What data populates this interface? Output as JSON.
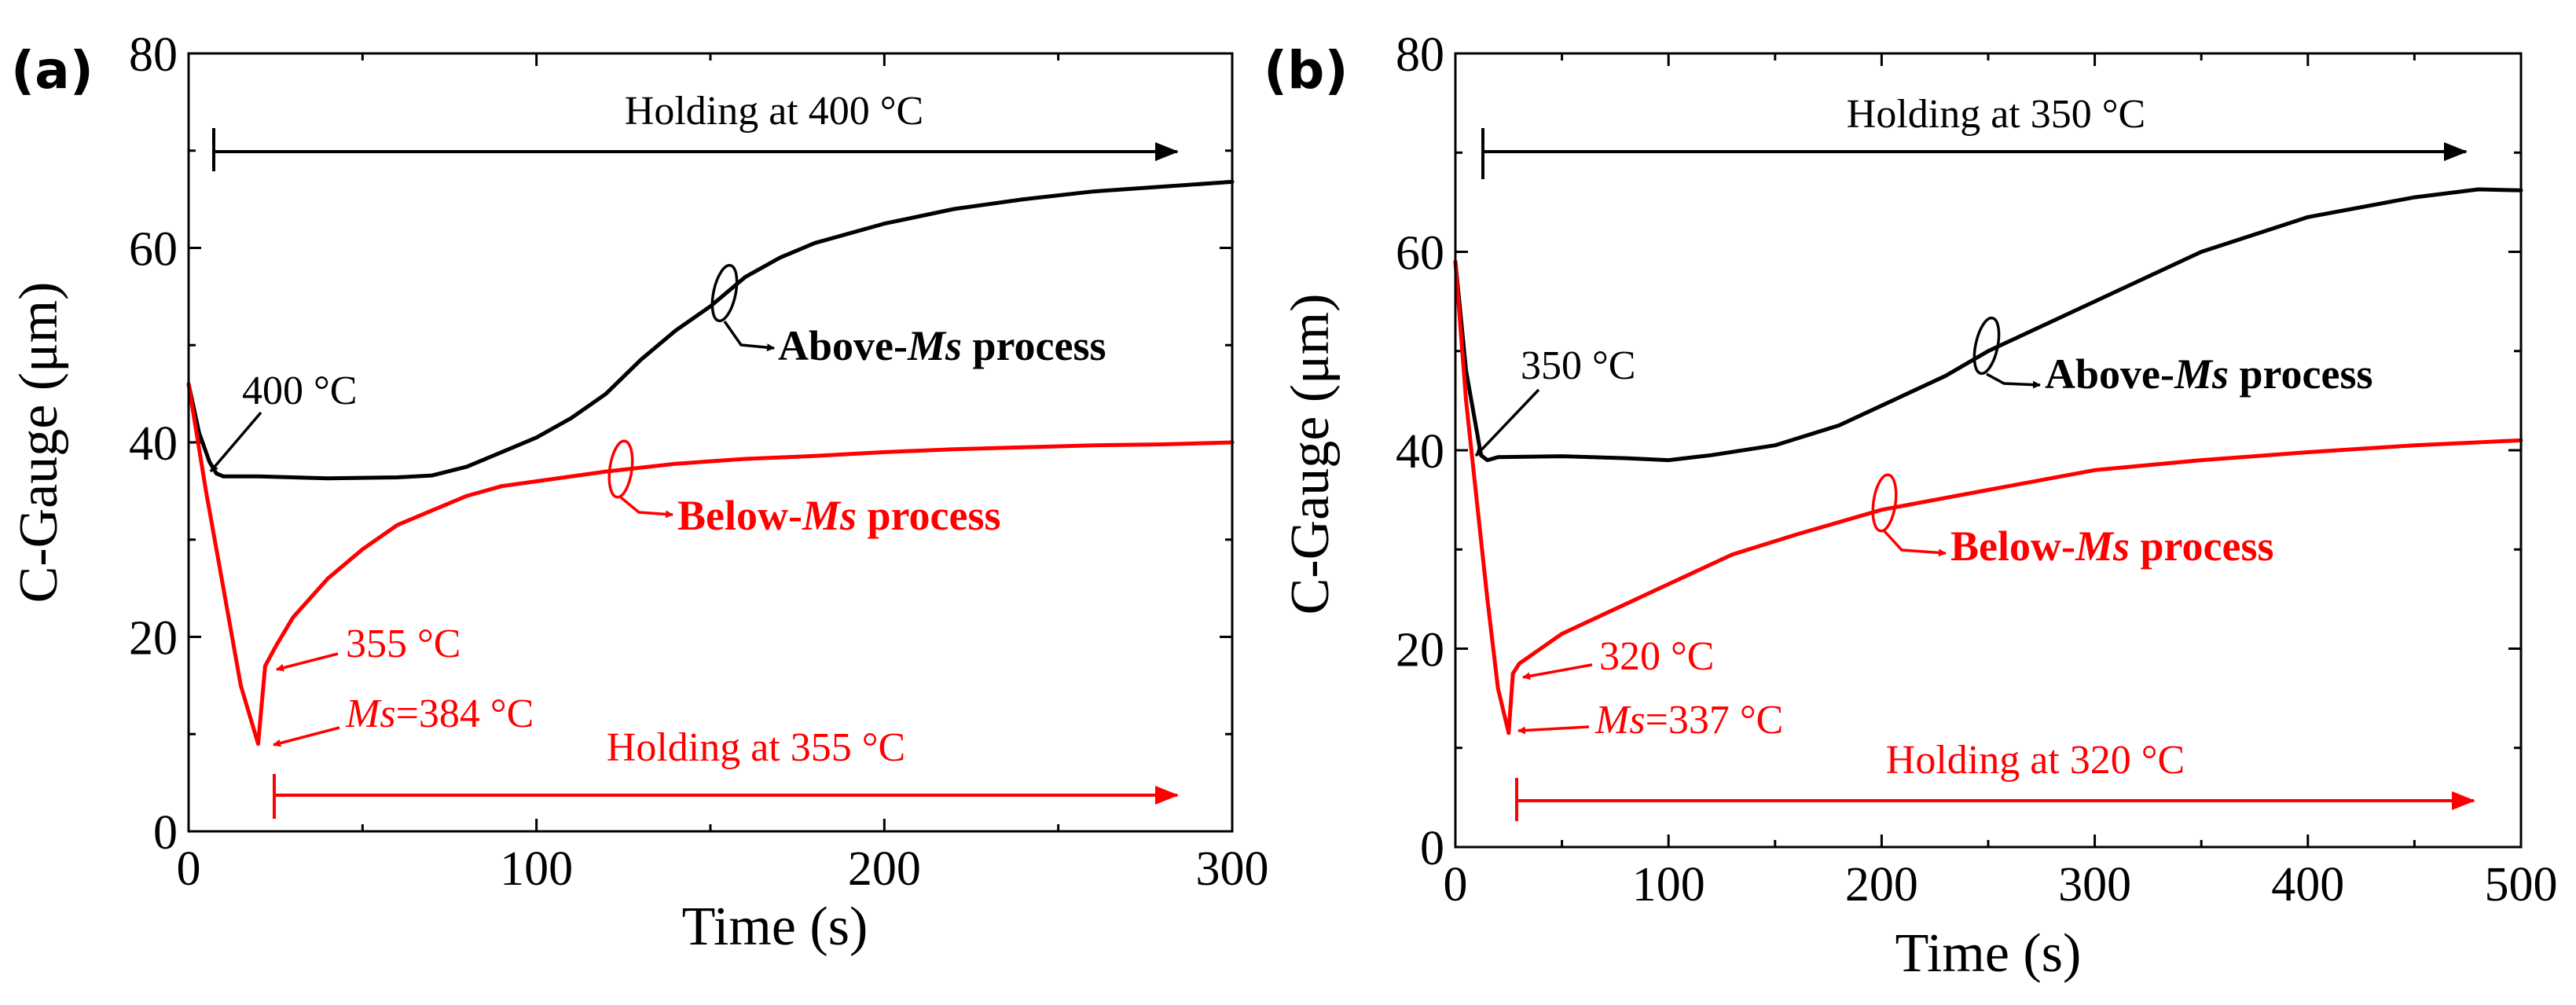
{
  "chart_data": [
    {
      "type": "line",
      "panel_label": "(a)",
      "xlabel": "Time (s)",
      "ylabel": "C-Gauge (μm)",
      "xlim": [
        0,
        300
      ],
      "ylim": [
        0,
        80
      ],
      "xticks": [
        "0",
        "100",
        "200",
        "300"
      ],
      "yticks": [
        "0",
        "20",
        "40",
        "60",
        "80"
      ],
      "series": [
        {
          "name": "Above-Ms process",
          "color": "#000000",
          "x": [
            0,
            3,
            6,
            8,
            10,
            20,
            40,
            60,
            70,
            80,
            90,
            100,
            110,
            120,
            130,
            140,
            150,
            160,
            170,
            180,
            200,
            220,
            240,
            260,
            280,
            300
          ],
          "y": [
            46,
            41,
            38,
            36.8,
            36.5,
            36.5,
            36.3,
            36.4,
            36.6,
            37.5,
            39,
            40.5,
            42.5,
            45,
            48.5,
            51.5,
            54,
            57,
            59,
            60.5,
            62.5,
            64,
            65,
            65.8,
            66.3,
            66.8
          ]
        },
        {
          "name": "Below-Ms process",
          "color": "#ff0000",
          "x": [
            0,
            5,
            10,
            15,
            20,
            22,
            25,
            30,
            40,
            50,
            60,
            70,
            80,
            90,
            100,
            120,
            140,
            160,
            180,
            200,
            220,
            240,
            260,
            280,
            300
          ],
          "y": [
            46,
            35,
            25,
            15,
            9,
            17,
            19,
            22,
            26,
            29,
            31.5,
            33,
            34.5,
            35.5,
            36,
            37,
            37.8,
            38.3,
            38.6,
            39,
            39.3,
            39.5,
            39.7,
            39.8,
            40
          ]
        }
      ],
      "annotations": {
        "hold_above": "Holding at 400 °C",
        "temp_above": "400 °C",
        "label_above_prefix": "Above-",
        "label_above_ms": "Ms",
        "label_above_suffix": " process",
        "label_below_prefix": "Below-",
        "label_below_ms": "Ms",
        "label_below_suffix": " process",
        "temp_below": "355 °C",
        "ms_label": "Ms",
        "ms_value": "=384 °C",
        "hold_below": "Holding at 355 °C"
      }
    },
    {
      "type": "line",
      "panel_label": "(b)",
      "xlabel": "Time (s)",
      "ylabel": "C-Gauge (μm)",
      "xlim": [
        0,
        500
      ],
      "ylim": [
        0,
        80
      ],
      "xticks": [
        "0",
        "100",
        "200",
        "300",
        "400",
        "500"
      ],
      "yticks": [
        "0",
        "20",
        "40",
        "60",
        "80"
      ],
      "series": [
        {
          "name": "Above-Ms process",
          "color": "#000000",
          "x": [
            0,
            5,
            10,
            12,
            15,
            20,
            50,
            80,
            100,
            120,
            150,
            180,
            200,
            230,
            250,
            280,
            300,
            350,
            400,
            450,
            480,
            500
          ],
          "y": [
            59,
            48,
            42,
            39.5,
            39,
            39.3,
            39.4,
            39.2,
            39,
            39.5,
            40.5,
            42.5,
            44.5,
            47.5,
            50,
            53,
            55,
            60,
            63.5,
            65.5,
            66.3,
            66.2
          ]
        },
        {
          "name": "Below-Ms process",
          "color": "#ff0000",
          "x": [
            0,
            5,
            10,
            15,
            20,
            25,
            27,
            30,
            40,
            50,
            70,
            100,
            130,
            160,
            200,
            250,
            300,
            350,
            400,
            450,
            500
          ],
          "y": [
            59,
            45,
            35,
            25,
            16,
            11.5,
            17.5,
            18.5,
            20,
            21.5,
            23.5,
            26.5,
            29.5,
            31.5,
            34,
            36,
            38,
            39,
            39.8,
            40.5,
            41
          ]
        }
      ],
      "annotations": {
        "hold_above": "Holding at 350 °C",
        "temp_above": "350 °C",
        "label_above_prefix": "Above-",
        "label_above_ms": "Ms",
        "label_above_suffix": " process",
        "label_below_prefix": "Below-",
        "label_below_ms": "Ms",
        "label_below_suffix": " process",
        "temp_below": "320 °C",
        "ms_label": "Ms",
        "ms_value": "=337 °C",
        "hold_below": "Holding at 320 °C"
      }
    }
  ]
}
